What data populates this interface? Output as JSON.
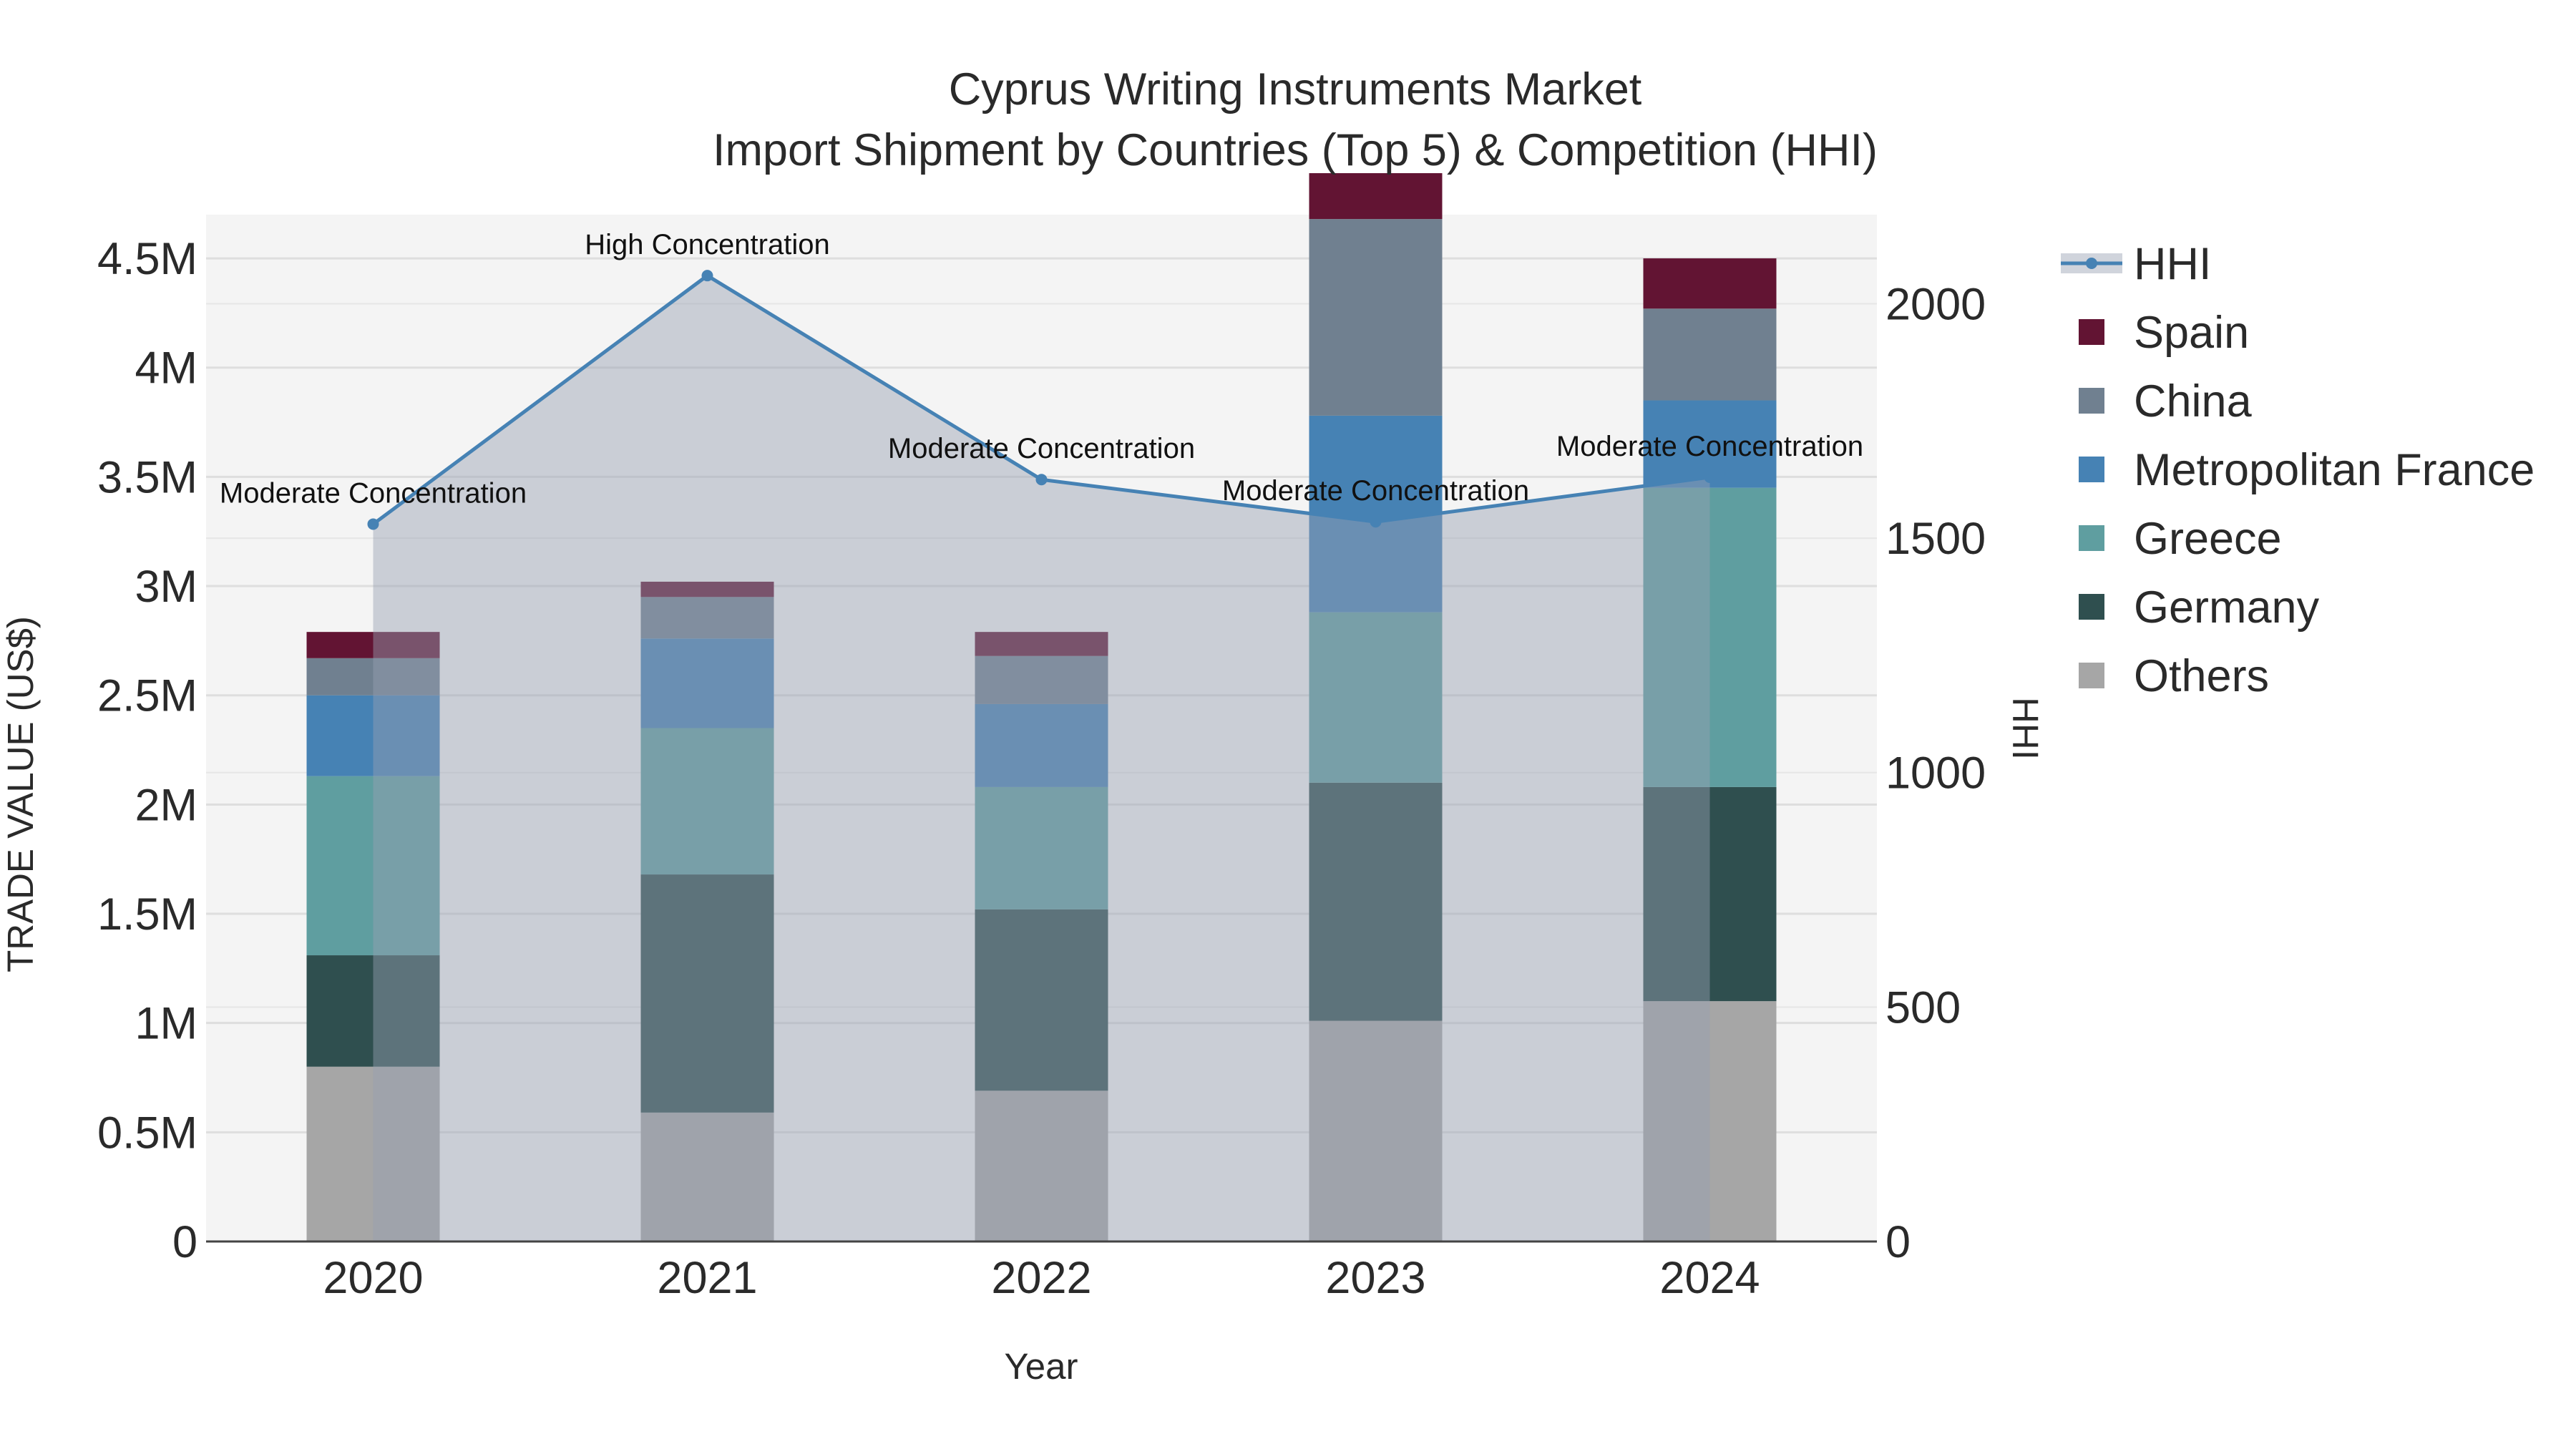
{
  "chart_data": {
    "type": "bar",
    "title": "Cyprus Writing Instruments Market",
    "subtitle": "Import Shipment by Countries (Top 5) & Competition (HHI)",
    "xlabel": "Year",
    "ylabel": "TRADE VALUE (US$)",
    "y2label": "HHI",
    "categories": [
      "2020",
      "2021",
      "2022",
      "2023",
      "2024"
    ],
    "ylim": [
      0,
      4700000
    ],
    "y_ticks": [
      0,
      500000,
      1000000,
      1500000,
      2000000,
      2500000,
      3000000,
      3500000,
      4000000,
      4500000
    ],
    "y_tick_labels": [
      "0",
      "0.5M",
      "1M",
      "1.5M",
      "2M",
      "2.5M",
      "3M",
      "3.5M",
      "4M",
      "4.5M"
    ],
    "y2lim": [
      0,
      2190
    ],
    "y2_ticks": [
      0,
      500,
      1000,
      1500,
      2000
    ],
    "y2_tick_labels": [
      "0",
      "500",
      "1000",
      "1500",
      "2000"
    ],
    "series": [
      {
        "name": "Others",
        "color": "#a6a6a6",
        "values": [
          800000,
          590000,
          690000,
          1010000,
          1100000
        ]
      },
      {
        "name": "Germany",
        "color": "#2f4f4f",
        "values": [
          510000,
          1090000,
          830000,
          1090000,
          980000
        ]
      },
      {
        "name": "Greece",
        "color": "#5f9ea0",
        "values": [
          820000,
          670000,
          560000,
          780000,
          1370000
        ]
      },
      {
        "name": "Metropolitan France",
        "color": "#4682b4",
        "values": [
          370000,
          410000,
          380000,
          900000,
          400000
        ]
      },
      {
        "name": "China",
        "color": "#708090",
        "values": [
          170000,
          190000,
          220000,
          900000,
          420000
        ]
      },
      {
        "name": "Spain",
        "color": "#621433",
        "values": [
          120000,
          70000,
          110000,
          210000,
          230000
        ]
      }
    ],
    "hhi": {
      "name": "HHI",
      "color": "#4682b4",
      "values": [
        1530,
        2060,
        1625,
        1535,
        1630
      ],
      "labels": [
        "Moderate Concentration",
        "High Concentration",
        "Moderate Concentration",
        "Moderate Concentration",
        "Moderate Concentration"
      ]
    },
    "legend": [
      "HHI",
      "Spain",
      "China",
      "Metropolitan France",
      "Greece",
      "Germany",
      "Others"
    ],
    "legend_position": "right"
  }
}
